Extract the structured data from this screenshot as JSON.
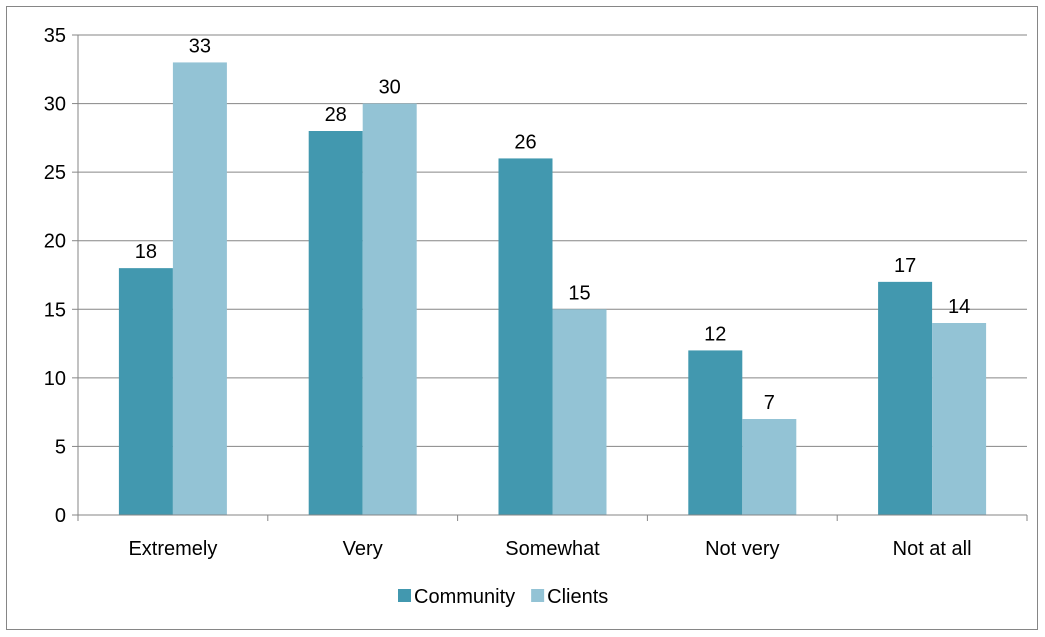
{
  "chart_data": {
    "type": "bar",
    "categories": [
      "Extremely",
      "Very",
      "Somewhat",
      "Not very",
      "Not at all"
    ],
    "series": [
      {
        "name": "Community",
        "values": [
          18,
          28,
          26,
          12,
          17
        ],
        "color": "#4298af"
      },
      {
        "name": "Clients",
        "values": [
          33,
          30,
          15,
          7,
          14
        ],
        "color": "#93c3d5"
      }
    ],
    "ylim": [
      0,
      35
    ],
    "yticks": [
      0,
      5,
      10,
      15,
      20,
      25,
      30,
      35
    ],
    "grid": true,
    "data_labels": true,
    "legend": "bottom"
  }
}
